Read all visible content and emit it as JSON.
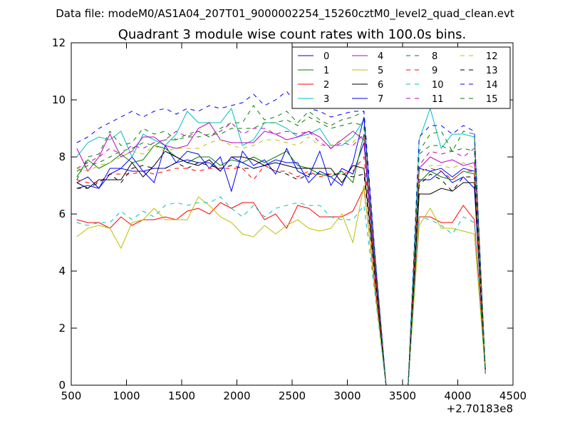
{
  "suptitle": "Data file: modeM0/AS1A04_207T01_9000002254_15260cztM0_level2_quad_clean.evt",
  "chart_data": {
    "type": "line",
    "title": "Quadrant 3 module wise count rates with 100.0s bins.",
    "xlabel": "",
    "ylabel": "",
    "x_offset_label": "+2.70183e8",
    "xlim": [
      500,
      4500
    ],
    "ylim": [
      0,
      12
    ],
    "xticks": [
      "500",
      "1000",
      "1500",
      "2000",
      "2500",
      "3000",
      "3500",
      "4000",
      "4500"
    ],
    "yticks": [
      "0",
      "2",
      "4",
      "6",
      "8",
      "10",
      "12"
    ],
    "grid": false,
    "legend_position": "top-right",
    "x": [
      550,
      650,
      750,
      850,
      950,
      1050,
      1150,
      1250,
      1350,
      1450,
      1550,
      1650,
      1750,
      1850,
      1950,
      2050,
      2150,
      2250,
      2350,
      2450,
      2550,
      2650,
      2750,
      2850,
      2950,
      3050,
      3150,
      3250,
      3350,
      3450,
      3550,
      3650,
      3750,
      3850,
      3950,
      4050,
      4150,
      4250
    ],
    "series": [
      {
        "name": "0",
        "color": "#0000ff",
        "dash": "solid",
        "values": [
          6.9,
          7.0,
          6.9,
          7.6,
          7.6,
          8.0,
          7.5,
          7.1,
          8.4,
          7.8,
          8.2,
          8.1,
          7.6,
          8.0,
          6.8,
          8.2,
          7.7,
          7.9,
          7.4,
          8.3,
          7.5,
          7.3,
          8.2,
          7.0,
          7.6,
          7.4,
          8.5,
          4.0,
          0,
          0,
          0,
          7.2,
          7.2,
          7.5,
          7.1,
          7.3,
          6.9,
          0.5
        ]
      },
      {
        "name": "1",
        "color": "#008000",
        "dash": "solid",
        "values": [
          7.3,
          7.9,
          7.6,
          7.8,
          8.1,
          7.8,
          7.9,
          8.4,
          8.3,
          8.0,
          7.8,
          8.0,
          8.0,
          7.7,
          7.9,
          7.8,
          8.0,
          7.8,
          8.0,
          8.2,
          7.7,
          7.6,
          7.4,
          7.3,
          7.5,
          7.1,
          8.8,
          4.0,
          0,
          0,
          0,
          7.1,
          7.5,
          7.3,
          7.2,
          7.5,
          7.4,
          0.5
        ]
      },
      {
        "name": "2",
        "color": "#ff0000",
        "dash": "solid",
        "values": [
          5.8,
          5.7,
          5.7,
          5.5,
          5.9,
          5.6,
          5.8,
          5.8,
          5.9,
          5.8,
          6.1,
          6.2,
          6.0,
          6.4,
          6.2,
          6.4,
          6.4,
          5.8,
          6.0,
          5.5,
          6.3,
          6.2,
          5.9,
          5.9,
          5.9,
          6.1,
          6.9,
          3.5,
          0,
          0,
          0,
          5.9,
          5.9,
          5.7,
          5.7,
          6.3,
          5.8,
          0.5
        ]
      },
      {
        "name": "3",
        "color": "#00bfbf",
        "dash": "solid",
        "values": [
          8.0,
          8.5,
          8.7,
          8.6,
          8.9,
          8.0,
          8.8,
          8.6,
          8.4,
          8.8,
          9.6,
          9.2,
          9.2,
          9.2,
          9.7,
          8.4,
          8.6,
          9.2,
          9.2,
          9.0,
          8.7,
          8.8,
          9.0,
          8.4,
          8.4,
          8.7,
          9.3,
          4.5,
          0,
          0,
          0,
          8.6,
          9.7,
          8.3,
          8.8,
          8.8,
          8.7,
          0.5
        ]
      },
      {
        "name": "4",
        "color": "#bf00bf",
        "dash": "solid",
        "values": [
          8.3,
          7.5,
          8.0,
          8.8,
          8.0,
          8.2,
          8.7,
          8.7,
          8.4,
          8.3,
          8.4,
          9.0,
          9.2,
          8.6,
          8.5,
          8.5,
          8.5,
          8.9,
          8.8,
          8.6,
          8.7,
          8.9,
          8.7,
          8.3,
          8.6,
          8.9,
          8.6,
          4.3,
          0,
          0,
          0,
          7.6,
          8.0,
          7.8,
          7.9,
          7.7,
          7.8,
          0.5
        ]
      },
      {
        "name": "5",
        "color": "#bfbf00",
        "dash": "solid",
        "values": [
          5.2,
          5.5,
          5.6,
          5.5,
          4.8,
          5.7,
          5.8,
          6.2,
          5.8,
          5.8,
          5.8,
          6.6,
          6.3,
          5.9,
          5.7,
          5.3,
          5.2,
          5.6,
          5.3,
          5.6,
          5.8,
          5.5,
          5.4,
          5.5,
          6.0,
          5.0,
          7.0,
          3.3,
          0,
          0,
          0,
          5.6,
          6.2,
          5.5,
          5.5,
          5.4,
          5.3,
          0.4
        ]
      },
      {
        "name": "6",
        "color": "#000000",
        "dash": "solid",
        "values": [
          7.1,
          6.9,
          7.2,
          7.2,
          7.2,
          7.8,
          7.3,
          7.7,
          8.2,
          8.0,
          7.8,
          7.7,
          7.9,
          7.5,
          8.0,
          8.0,
          7.9,
          7.7,
          7.8,
          7.7,
          7.6,
          7.6,
          7.6,
          7.6,
          7.1,
          7.7,
          7.6,
          3.9,
          0,
          0,
          0,
          6.7,
          6.7,
          6.9,
          6.8,
          7.1,
          7.1,
          0.4
        ]
      },
      {
        "name": "7",
        "color": "#0000ff",
        "dash": "solid",
        "values": [
          7.1,
          7.3,
          6.9,
          7.4,
          7.6,
          7.5,
          7.5,
          7.6,
          7.6,
          7.8,
          7.9,
          7.8,
          7.8,
          7.5,
          8.0,
          7.8,
          7.6,
          7.7,
          7.9,
          7.8,
          7.8,
          7.1,
          7.5,
          7.3,
          7.0,
          7.8,
          9.4,
          4.5,
          0,
          0,
          0,
          7.6,
          7.5,
          7.6,
          7.3,
          7.6,
          7.5,
          0.5
        ]
      },
      {
        "name": "8",
        "color": "#008000",
        "dash": "dashed",
        "values": [
          7.2,
          8.0,
          8.1,
          8.9,
          8.4,
          8.5,
          9.0,
          8.8,
          8.9,
          8.6,
          8.8,
          8.9,
          8.7,
          9.0,
          9.2,
          9.2,
          9.8,
          9.3,
          9.4,
          9.6,
          9.2,
          9.6,
          9.3,
          9.1,
          9.3,
          9.4,
          9.6,
          4.6,
          0,
          0,
          0,
          8.2,
          8.8,
          8.9,
          8.2,
          8.9,
          8.8,
          0.5
        ]
      },
      {
        "name": "9",
        "color": "#ff0000",
        "dash": "dashed",
        "values": [
          7.2,
          7.1,
          7.1,
          7.4,
          7.4,
          7.4,
          7.5,
          7.4,
          7.5,
          7.6,
          7.6,
          7.5,
          7.6,
          7.6,
          7.6,
          7.6,
          7.2,
          7.7,
          7.5,
          7.5,
          7.3,
          7.5,
          7.3,
          7.4,
          7.4,
          7.5,
          8.0,
          4.1,
          0,
          0,
          0,
          7.5,
          7.6,
          7.5,
          7.2,
          7.5,
          7.5,
          0.5
        ]
      },
      {
        "name": "10",
        "color": "#00bfbf",
        "dash": "dashed",
        "values": [
          5.7,
          5.6,
          5.7,
          5.7,
          6.1,
          5.8,
          6.1,
          5.9,
          6.3,
          6.4,
          6.3,
          6.4,
          6.4,
          6.6,
          6.2,
          5.9,
          6.3,
          5.9,
          6.2,
          6.3,
          6.4,
          6.3,
          6.3,
          5.9,
          5.8,
          5.8,
          6.3,
          3.2,
          0,
          0,
          0,
          5.9,
          5.8,
          5.6,
          5.3,
          5.9,
          5.7,
          0.4
        ]
      },
      {
        "name": "11",
        "color": "#bf00bf",
        "dash": "dashed",
        "values": [
          7.6,
          7.8,
          8.0,
          8.3,
          8.1,
          8.4,
          8.3,
          8.5,
          8.6,
          8.9,
          8.7,
          8.9,
          8.7,
          8.9,
          9.2,
          8.8,
          9.0,
          9.0,
          8.8,
          8.9,
          8.8,
          8.9,
          8.5,
          8.3,
          8.5,
          8.4,
          8.8,
          4.4,
          0,
          0,
          0,
          7.7,
          8.2,
          8.1,
          8.2,
          8.0,
          8.3,
          0.5
        ]
      },
      {
        "name": "12",
        "color": "#bfbf00",
        "dash": "dashed",
        "values": [
          7.6,
          7.5,
          7.7,
          7.8,
          8.0,
          8.2,
          8.1,
          8.4,
          8.2,
          8.3,
          8.3,
          8.3,
          8.5,
          8.6,
          8.4,
          8.3,
          8.4,
          8.6,
          8.6,
          8.5,
          8.4,
          8.7,
          8.4,
          8.4,
          8.6,
          8.5,
          9.0,
          4.4,
          0,
          0,
          0,
          7.4,
          7.7,
          7.7,
          7.6,
          7.8,
          7.6,
          0.5
        ]
      },
      {
        "name": "13",
        "color": "#000000",
        "dash": "dashed",
        "values": [
          6.9,
          6.9,
          7.1,
          7.4,
          7.1,
          7.6,
          7.7,
          7.6,
          7.6,
          7.8,
          7.6,
          7.8,
          7.7,
          7.6,
          7.7,
          7.6,
          7.6,
          7.7,
          7.5,
          7.4,
          7.2,
          7.4,
          7.4,
          7.4,
          7.4,
          7.3,
          7.4,
          3.8,
          0,
          0,
          0,
          7.0,
          7.4,
          7.2,
          6.8,
          7.3,
          7.3,
          0.5
        ]
      },
      {
        "name": "14",
        "color": "#0000ff",
        "dash": "dashed",
        "values": [
          8.5,
          8.7,
          9.0,
          9.2,
          9.4,
          9.6,
          9.4,
          9.6,
          9.7,
          9.5,
          9.7,
          9.6,
          9.8,
          9.7,
          9.8,
          9.9,
          10.2,
          9.8,
          10.0,
          10.3,
          9.8,
          9.7,
          9.6,
          9.4,
          9.5,
          9.6,
          9.6,
          4.6,
          0,
          0,
          0,
          8.7,
          9.1,
          9.1,
          8.8,
          9.1,
          8.9,
          0.5
        ]
      },
      {
        "name": "15",
        "color": "#008000",
        "dash": "dashed",
        "values": [
          7.5,
          7.7,
          7.8,
          8.0,
          8.2,
          8.3,
          8.5,
          8.4,
          8.6,
          8.6,
          8.7,
          8.7,
          8.8,
          8.8,
          9.0,
          9.0,
          9.0,
          9.2,
          9.2,
          9.3,
          9.1,
          9.4,
          9.2,
          9.0,
          9.1,
          9.2,
          9.1,
          4.4,
          0,
          0,
          0,
          8.1,
          8.4,
          8.4,
          8.2,
          8.3,
          8.2,
          0.5
        ]
      }
    ]
  }
}
